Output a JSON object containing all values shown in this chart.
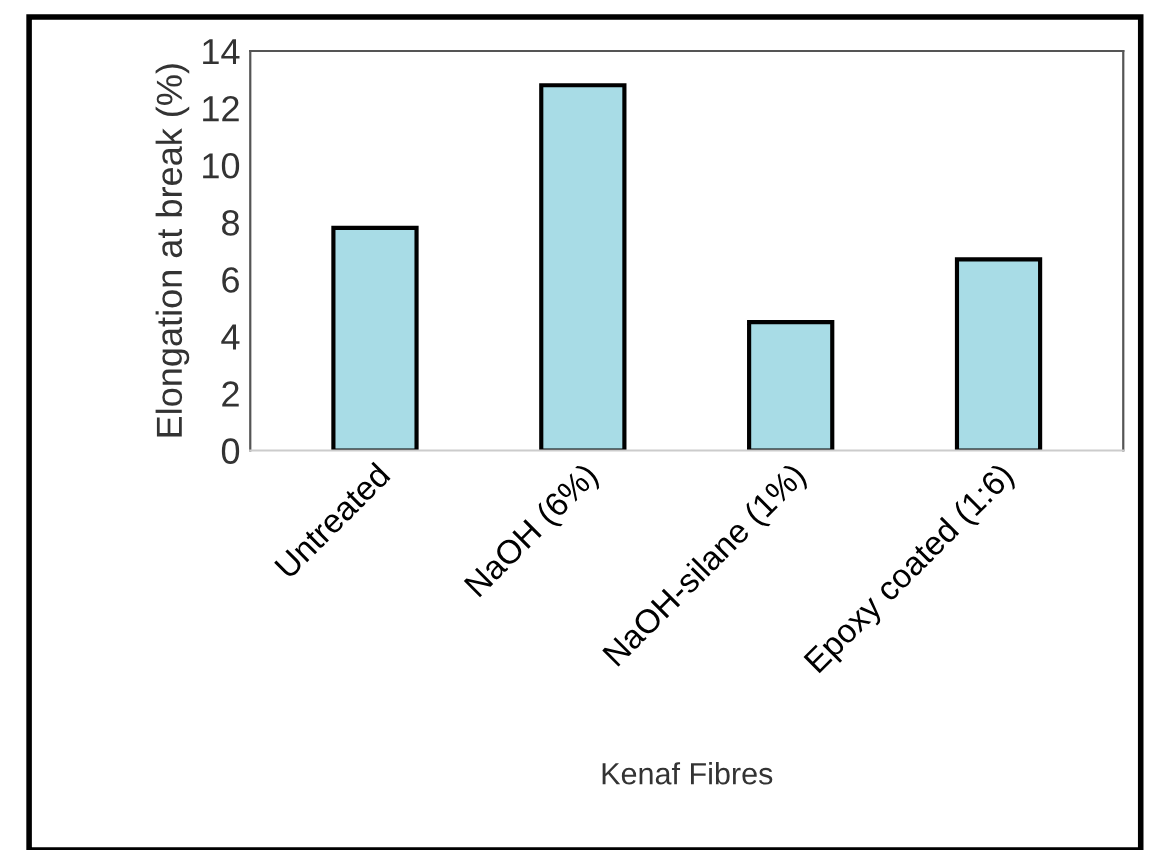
{
  "chart_data": {
    "type": "bar",
    "xlabel": "Kenaf Fibres",
    "ylabel": "Elongation at break (%)",
    "categories": [
      "Untreated",
      "NaOH (6%)",
      "NaOH-silane (1%)",
      "Epoxy coated (1:6)"
    ],
    "values": [
      7.8,
      12.8,
      4.5,
      6.7
    ],
    "color": "#a8dce6",
    "ylim": [
      0,
      14
    ],
    "yticks": [
      0,
      2,
      4,
      6,
      8,
      10,
      12,
      14
    ],
    "grid": false
  }
}
